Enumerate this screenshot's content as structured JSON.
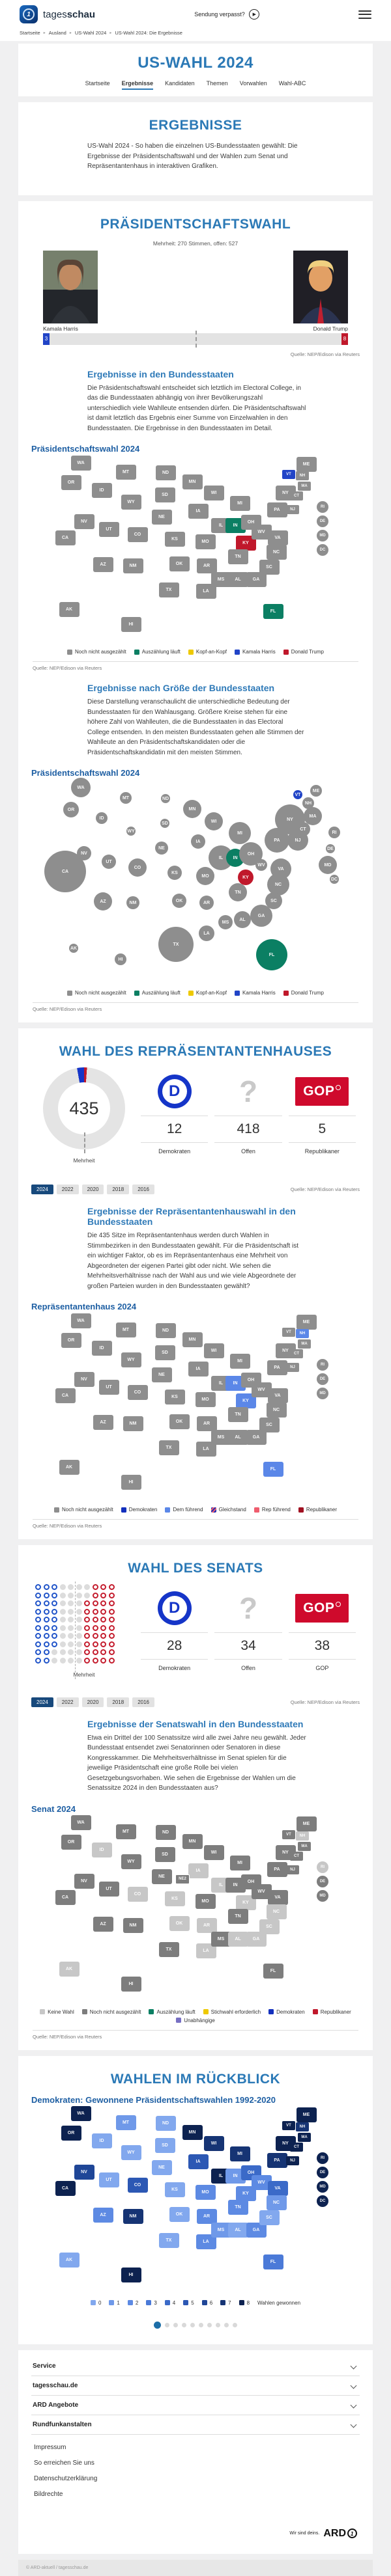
{
  "header": {
    "logo_light": "tages",
    "logo_bold": "schau",
    "watch_label": "Sendung verpasst?",
    "breadcrumb": [
      "Startseite",
      "Ausland",
      "US-Wahl 2024",
      "US-Wahl 2024: Die Ergebnisse"
    ]
  },
  "page": {
    "title": "US-WAHL 2024",
    "tabs": [
      {
        "label": "Startseite"
      },
      {
        "label": "Ergebnisse"
      },
      {
        "label": "Kandidaten"
      },
      {
        "label": "Themen"
      },
      {
        "label": "Vorwahlen"
      },
      {
        "label": "Wahl-ABC"
      }
    ]
  },
  "intro": {
    "heading": "ERGEBNISSE",
    "text": "US-Wahl 2024 - So haben die einzelnen US-Bundesstaaten gewählt: Die Ergebnisse der Präsidentschaftswahl und der Wahlen zum Senat und Repräsentantenhaus in interaktiven Grafiken."
  },
  "president": {
    "heading": "PRÄSIDENTSCHAFTSWAHL",
    "subline": "Mehrheit: 270 Stimmen, offen: 527",
    "candidates": [
      {
        "name": "Kamala Harris",
        "votes": 3,
        "color": "#2144c7"
      },
      {
        "name": "Donald Trump",
        "votes": 8,
        "color": "#c0182b"
      }
    ],
    "source": "Quelle: NEP/Edison via Reuters"
  },
  "sections": {
    "state_results": {
      "heading": "Ergebnisse in den Bundesstaaten",
      "text": "Die Präsidentschaftswahl entscheidet sich letztlich im Electoral College, in das die Bundesstaaten abhängig von ihrer Bevölkerungszahl unterschiedlich viele Wahlleute entsenden dürfen. Die Präsidentschaftswahl ist damit letztlich das Ergebnis einer Summe von Einzelwahlen in den Bundesstaaten. Die Ergebnisse in den Bundesstaaten im Detail.",
      "map_title": "Präsidentschaftswahl 2024",
      "legend": [
        {
          "label": "Noch nicht ausgezählt",
          "color": "#8e8e8e"
        },
        {
          "label": "Auszählung läuft",
          "color": "#0b7f63"
        },
        {
          "label": "Kopf-an-Kopf",
          "color": "#eec900"
        },
        {
          "label": "Kamala Harris",
          "color": "#2144c7"
        },
        {
          "label": "Donald Trump",
          "color": "#c0182b"
        }
      ],
      "source": "Quelle: NEP/Edison via Reuters"
    },
    "size_results": {
      "heading": "Ergebnisse nach Größe der Bundesstaaten",
      "text": "Diese Darstellung veranschaulicht die unterschiedliche Bedeutung der Bundesstaaten für den Wahlausgang. Größere Kreise stehen für eine höhere Zahl von Wahlleuten, die die Bundesstaaten in das Electoral College entsenden. In den meisten Bundesstaaten gehen alle Stimmen der Wahlleute an den Präsidentschaftskandidaten oder die Präsidentschaftskandidatin mit den meisten Stimmen.",
      "map_title": "Präsidentschaftswahl 2024",
      "legend": [
        {
          "label": "Noch nicht ausgezählt",
          "color": "#8e8e8e"
        },
        {
          "label": "Auszählung läuft",
          "color": "#0b7f63"
        },
        {
          "label": "Kopf-an-Kopf",
          "color": "#eec900"
        },
        {
          "label": "Kamala Harris",
          "color": "#2144c7"
        },
        {
          "label": "Donald Trump",
          "color": "#c0182b"
        }
      ],
      "source": "Quelle: NEP/Edison via Reuters"
    },
    "house": {
      "heading": "WAHL DES REPRÄSENTANTENHAUSES",
      "majority_label": "Mehrheit",
      "total": "435",
      "parties": [
        {
          "value": "12",
          "label": "Demokraten"
        },
        {
          "value": "418",
          "label": "Offen"
        },
        {
          "value": "5",
          "label": "Republikaner"
        }
      ],
      "years": [
        "2024",
        "2022",
        "2020",
        "2018",
        "2016"
      ],
      "active_year": "2024",
      "source": "Quelle: NEP/Edison via Reuters"
    },
    "house_states": {
      "heading": "Ergebnisse der Repräsentantenhauswahl in den Bundesstaaten",
      "text": "Die 435 Sitze im Repräsentantenhaus werden durch Wahlen in Stimmbezirken in den Bundesstaaten gewählt. Für die Präsidentschaft ist ein wichtiger Faktor, ob es im Repräsentantenhaus eine Mehrheit von Abgeordneten der eigenen Partei gibt oder nicht. Wie sehen die Mehrheitsverhältnisse nach der Wahl aus und wie viele Abgeordnete der großen Parteien wurden in den Bundesstaaten gewählt?",
      "map_title": "Repräsentantenhaus 2024",
      "legend": [
        {
          "label": "Noch nicht ausgezählt",
          "color": "#8e8e8e"
        },
        {
          "label": "Demokraten",
          "color": "#1330bd"
        },
        {
          "label": "Dem führend",
          "color": "#5b87e8"
        },
        {
          "label": "Gleichstand",
          "color": "striped"
        },
        {
          "label": "Rep führend",
          "color": "#ef5d6e"
        },
        {
          "label": "Republikaner",
          "color": "#a01021"
        }
      ],
      "source": "Quelle: NEP/Edison via Reuters"
    },
    "senate": {
      "heading": "WAHL DES SENATS",
      "majority_label": "Mehrheit",
      "parties": [
        {
          "value": "28",
          "label": "Demokraten"
        },
        {
          "value": "34",
          "label": "Offen"
        },
        {
          "value": "38",
          "label": "GOP"
        }
      ],
      "years": [
        "2024",
        "2022",
        "2020",
        "2018",
        "2016"
      ],
      "active_year": "2024",
      "source": "Quelle: NEP/Edison via Reuters"
    },
    "senate_states": {
      "heading": "Ergebnisse der Senatswahl in den Bundesstaaten",
      "text": "Etwa ein Drittel der 100 Senatssitze wird alle zwei Jahre neu gewählt. Jeder Bundesstaat entsendet zwei Senatorinnen oder Senatoren in diese Kongresskammer. Die Mehrheitsverhältnisse im Senat spielen für die jeweilige Präsidentschaft eine große Rolle bei vielen Gesetzgebungsvorhaben. Wie sehen die Ergebnisse der Wahlen um die Senatssitze 2024 in den Bundesstaaten aus?",
      "map_title": "Senat 2024",
      "legend": [
        {
          "label": "Keine Wahl",
          "color": "#c7c7c7"
        },
        {
          "label": "Noch nicht ausgezählt",
          "color": "#7d7d7d"
        },
        {
          "label": "Auszählung läuft",
          "color": "#0b7f63"
        },
        {
          "label": "Stichwahl erforderlich",
          "color": "#eec900"
        },
        {
          "label": "Demokraten",
          "color": "#1330bd"
        },
        {
          "label": "Republikaner",
          "color": "#c0182b"
        },
        {
          "label": "Unabhängige",
          "color": "#776fc3"
        }
      ],
      "source": "Quelle: NEP/Edison via Reuters"
    },
    "review": {
      "heading": "WAHLEN IM RÜCKBLICK",
      "map_title": "Demokraten: Gewonnene Präsidentschaftswahlen 1992-2020",
      "legend_label": "Wahlen gewonnen",
      "carousel_dots": 10
    }
  },
  "footer": {
    "accordions": [
      "Service",
      "tagesschau.de",
      "ARD Angebote",
      "Rundfunkanstalten"
    ],
    "links": [
      "Impressum",
      "So erreichen Sie uns",
      "Datenschutzerklärung",
      "Bildrechte"
    ],
    "ard_claim": "Wir sind deins.",
    "ard_logo": "ARD",
    "copyright": "© ARD-aktuell / tagesschau.de"
  },
  "all_states": [
    "WA",
    "OR",
    "CA",
    "AK",
    "HI",
    "ID",
    "NV",
    "UT",
    "AZ",
    "MT",
    "WY",
    "CO",
    "NM",
    "ND",
    "SD",
    "NE",
    "KS",
    "OK",
    "TX",
    "MN",
    "IA",
    "MO",
    "AR",
    "LA",
    "WI",
    "IL",
    "MS",
    "MI",
    "IN",
    "KY",
    "TN",
    "AL",
    "OH",
    "WV",
    "GA",
    "FL",
    "NY",
    "PA",
    "VA",
    "NC",
    "SC",
    "ME",
    "VT",
    "NH",
    "MA",
    "CT",
    "NJ",
    "RI",
    "DE",
    "MD",
    "DC"
  ],
  "chart_data": [
    {
      "id": "president-map",
      "type": "choropleth-map",
      "title": "Präsidentschaftswahl 2024",
      "default_status": "not_counted",
      "overrides": {
        "VT": "harris",
        "KY": "trump",
        "IN": "counting",
        "FL": "counting"
      },
      "status_colors": {
        "not_counted": "#8e8e8e",
        "counting": "#0b7f63",
        "head_to_head": "#eec900",
        "harris": "#2144c7",
        "trump": "#c0182b"
      },
      "exclude": []
    },
    {
      "id": "president-bubbles",
      "type": "bubble-map",
      "title": "Präsidentschaftswahl 2024",
      "default_status": "not_counted",
      "overrides": {
        "VT": "harris",
        "KY": "trump",
        "IN": "counting",
        "FL": "counting"
      },
      "status_colors": {
        "not_counted": "#8e8e8e",
        "counting": "#0b7f63",
        "head_to_head": "#eec900",
        "harris": "#2144c7",
        "trump": "#c0182b"
      },
      "electoral_votes": {
        "WA": 12,
        "OR": 8,
        "CA": 54,
        "AK": 3,
        "HI": 4,
        "ID": 4,
        "NV": 6,
        "UT": 6,
        "AZ": 11,
        "MT": 4,
        "WY": 3,
        "CO": 10,
        "NM": 5,
        "ND": 3,
        "SD": 3,
        "NE": 5,
        "KS": 6,
        "OK": 7,
        "TX": 40,
        "MN": 10,
        "IA": 6,
        "MO": 10,
        "AR": 6,
        "LA": 8,
        "WI": 10,
        "IL": 19,
        "MS": 6,
        "MI": 15,
        "IN": 11,
        "KY": 8,
        "TN": 11,
        "AL": 9,
        "OH": 17,
        "WV": 4,
        "GA": 16,
        "FL": 30,
        "NY": 28,
        "PA": 19,
        "VA": 13,
        "NC": 16,
        "SC": 9,
        "ME": 4,
        "VT": 3,
        "NH": 4,
        "MA": 11,
        "CT": 7,
        "NJ": 14,
        "RI": 4,
        "DE": 3,
        "MD": 10,
        "DC": 3
      },
      "exclude": []
    },
    {
      "id": "house-donut",
      "type": "donut",
      "total": 435,
      "majority_label": "Mehrheit",
      "series": [
        {
          "name": "Demokraten",
          "value": 12,
          "color": "#1535c8"
        },
        {
          "name": "Republikaner",
          "value": 5,
          "color": "#c0182b"
        },
        {
          "name": "Offen",
          "value": 418,
          "color": "#e4e4e4"
        }
      ]
    },
    {
      "id": "house-map",
      "type": "choropleth-map",
      "title": "Repräsentantenhaus 2024",
      "default_status": "not_counted",
      "overrides": {
        "NH": "dem_lead",
        "IN": "dem_lead",
        "KY": "dem_lead",
        "FL": "dem_lead"
      },
      "status_colors": {
        "not_counted": "#8e8e8e",
        "dem": "#1330bd",
        "dem_lead": "#5b87e8",
        "tie": "striped",
        "rep_lead": "#ef5d6e",
        "rep": "#a01021"
      },
      "exclude": [
        "DC"
      ]
    },
    {
      "id": "senate-dots",
      "type": "dot-grid",
      "total": 100,
      "majority_label": "Mehrheit",
      "series": [
        {
          "name": "Demokraten",
          "value": 28,
          "style": "ring-d"
        },
        {
          "name": "Offen",
          "value": 34,
          "style": "fill"
        },
        {
          "name": "GOP",
          "value": 38,
          "style": "ring-r"
        }
      ]
    },
    {
      "id": "senate-map",
      "type": "choropleth-map",
      "title": "Senat 2024",
      "default_status": "not_counted",
      "overrides": {
        "ID": "no_election",
        "IA": "no_election",
        "IL": "no_election",
        "CO": "no_election",
        "KS": "no_election",
        "KY": "no_election",
        "OK": "no_election",
        "AR": "no_election",
        "AL": "no_election",
        "GA": "no_election",
        "NC": "no_election",
        "SC": "no_election",
        "LA": "no_election",
        "AK": "no_election",
        "NH": "no_election",
        "RI": "no_election"
      },
      "status_colors": {
        "no_election": "#c7c7c7",
        "not_counted": "#7d7d7d",
        "counting": "#0b7f63",
        "runoff": "#eec900",
        "dem": "#1330bd",
        "rep": "#c0182b",
        "independent": "#776fc3"
      },
      "exclude": [
        "DC"
      ],
      "extra_districts": [
        {
          "id": "NE2",
          "status": "not_counted"
        }
      ]
    },
    {
      "id": "review-map",
      "type": "win-map",
      "title": "Demokraten: Gewonnene Präsidentschaftswahlen 1992-2020",
      "legend_label": "Wahlen gewonnen",
      "scale": [
        "#82a8ee",
        "#6f99e9",
        "#5d8ae3",
        "#4b7ad8",
        "#3b6ac8",
        "#2c58b4",
        "#1f4697",
        "#163474",
        "#0d2250"
      ],
      "wins": {
        "WA": 8,
        "OR": 8,
        "CA": 8,
        "AK": 0,
        "HI": 8,
        "ID": 0,
        "NV": 6,
        "UT": 0,
        "AZ": 2,
        "MT": 1,
        "WY": 0,
        "CO": 5,
        "NM": 7,
        "ND": 0,
        "SD": 0,
        "NE": 0,
        "KS": 0,
        "OK": 0,
        "TX": 0,
        "MN": 8,
        "IA": 5,
        "MO": 2,
        "AR": 2,
        "LA": 2,
        "WI": 7,
        "IL": 8,
        "MS": 1,
        "MI": 7,
        "IN": 1,
        "KY": 2,
        "TN": 2,
        "AL": 0,
        "OH": 4,
        "WV": 2,
        "GA": 2,
        "FL": 3,
        "NY": 8,
        "PA": 7,
        "VA": 4,
        "NC": 1,
        "SC": 0,
        "ME": 8,
        "VT": 8,
        "NH": 7,
        "MA": 8,
        "CT": 8,
        "NJ": 8,
        "RI": 8,
        "DE": 8,
        "MD": 8,
        "DC": 8
      },
      "exclude": []
    }
  ]
}
